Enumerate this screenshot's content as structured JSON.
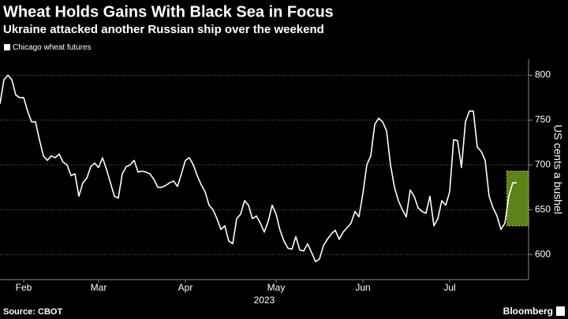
{
  "chart_data": {
    "type": "line",
    "title": "Wheat Holds Gains With Black Sea in Focus",
    "subtitle": "Ukraine attacked another Russian ship over the weekend",
    "ylabel": "US cents a bushel",
    "xlabel": "2023",
    "source": "Source: CBOT",
    "brand": "Bloomberg",
    "series": [
      {
        "name": "Chicago wheat futures",
        "color": "#ffffff",
        "values": [
          768,
          795,
          800,
          795,
          778,
          775,
          775,
          760,
          748,
          748,
          728,
          710,
          705,
          710,
          708,
          712,
          703,
          700,
          688,
          690,
          665,
          680,
          685,
          698,
          702,
          697,
          708,
          695,
          680,
          665,
          663,
          690,
          698,
          700,
          705,
          692,
          693,
          692,
          690,
          684,
          675,
          675,
          677,
          680,
          682,
          676,
          690,
          705,
          708,
          700,
          688,
          678,
          670,
          655,
          650,
          640,
          628,
          632,
          615,
          612,
          640,
          645,
          660,
          655,
          640,
          643,
          635,
          625,
          637,
          655,
          645,
          627,
          615,
          607,
          606,
          620,
          605,
          604,
          612,
          602,
          592,
          595,
          610,
          617,
          623,
          627,
          617,
          625,
          630,
          635,
          648,
          642,
          668,
          700,
          710,
          745,
          752,
          748,
          738,
          700,
          675,
          660,
          650,
          642,
          672,
          665,
          652,
          648,
          646,
          665,
          632,
          640,
          660,
          655,
          670,
          728,
          727,
          697,
          748,
          760,
          760,
          720,
          715,
          705,
          665,
          652,
          643,
          628,
          635,
          665,
          680,
          680
        ]
      }
    ],
    "xlim": [
      0,
      134
    ],
    "xticks": [
      {
        "value": 6,
        "label": "Feb"
      },
      {
        "value": 25,
        "label": "Mar"
      },
      {
        "value": 47,
        "label": "Apr"
      },
      {
        "value": 70,
        "label": "May"
      },
      {
        "value": 92,
        "label": "Jun"
      },
      {
        "value": 114,
        "label": "Jul"
      }
    ],
    "ylim": [
      572,
      818
    ],
    "yticks": [
      600,
      650,
      700,
      750,
      800
    ],
    "grid": true,
    "highlight": {
      "x": [
        128.5,
        134
      ],
      "y": [
        632,
        693
      ],
      "color": "#6a9a1f"
    }
  }
}
